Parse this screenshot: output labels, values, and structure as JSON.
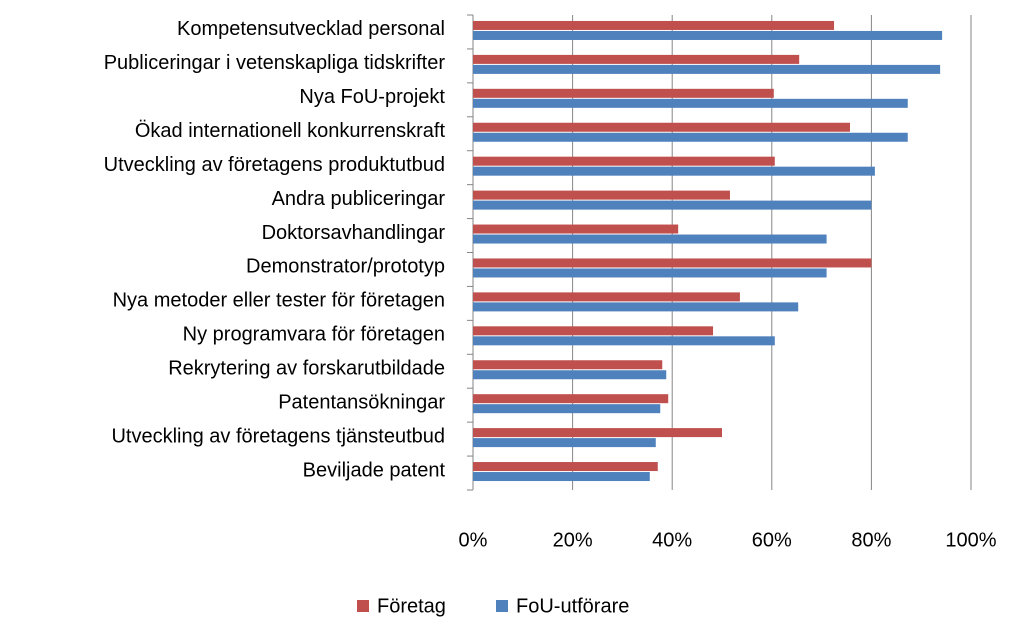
{
  "chart_data": {
    "type": "barh",
    "categories": [
      "Kompetensutvecklad personal",
      "Publiceringar i vetenskapliga tidskrifter",
      "Nya FoU-projekt",
      "Ökad internationell konkurrenskraft",
      "Utveckling av företagens produktutbud",
      "Andra publiceringar",
      "Doktorsavhandlingar",
      "Demonstrator/prototyp",
      "Nya metoder eller tester för företagen",
      "Ny programvara för företagen",
      "Rekrytering av forskarutbildade",
      "Patentansökningar",
      "Utveckling av företagens tjänsteutbud",
      "Beviljade patent"
    ],
    "series": [
      {
        "name": "Företag",
        "color": "#c0504d",
        "values": [
          72.5,
          65.5,
          60.4,
          75.7,
          60.6,
          51.6,
          41.2,
          80,
          53.6,
          48.2,
          38,
          39.2,
          50,
          37.1
        ]
      },
      {
        "name": "FoU-utförare",
        "color": "#4f81bd",
        "values": [
          94.2,
          93.8,
          87.3,
          87.3,
          80.7,
          80,
          71,
          71,
          65.3,
          60.6,
          38.8,
          37.6,
          36.7,
          35.5
        ]
      }
    ],
    "xlim": [
      0,
      100
    ],
    "xticks": [
      {
        "value": 0,
        "label": "0%"
      },
      {
        "value": 20,
        "label": "20%"
      },
      {
        "value": 40,
        "label": "40%"
      },
      {
        "value": 60,
        "label": "60%"
      },
      {
        "value": 80,
        "label": "80%"
      },
      {
        "value": 100,
        "label": "100%"
      }
    ],
    "grid": true,
    "legend": "bottom"
  }
}
